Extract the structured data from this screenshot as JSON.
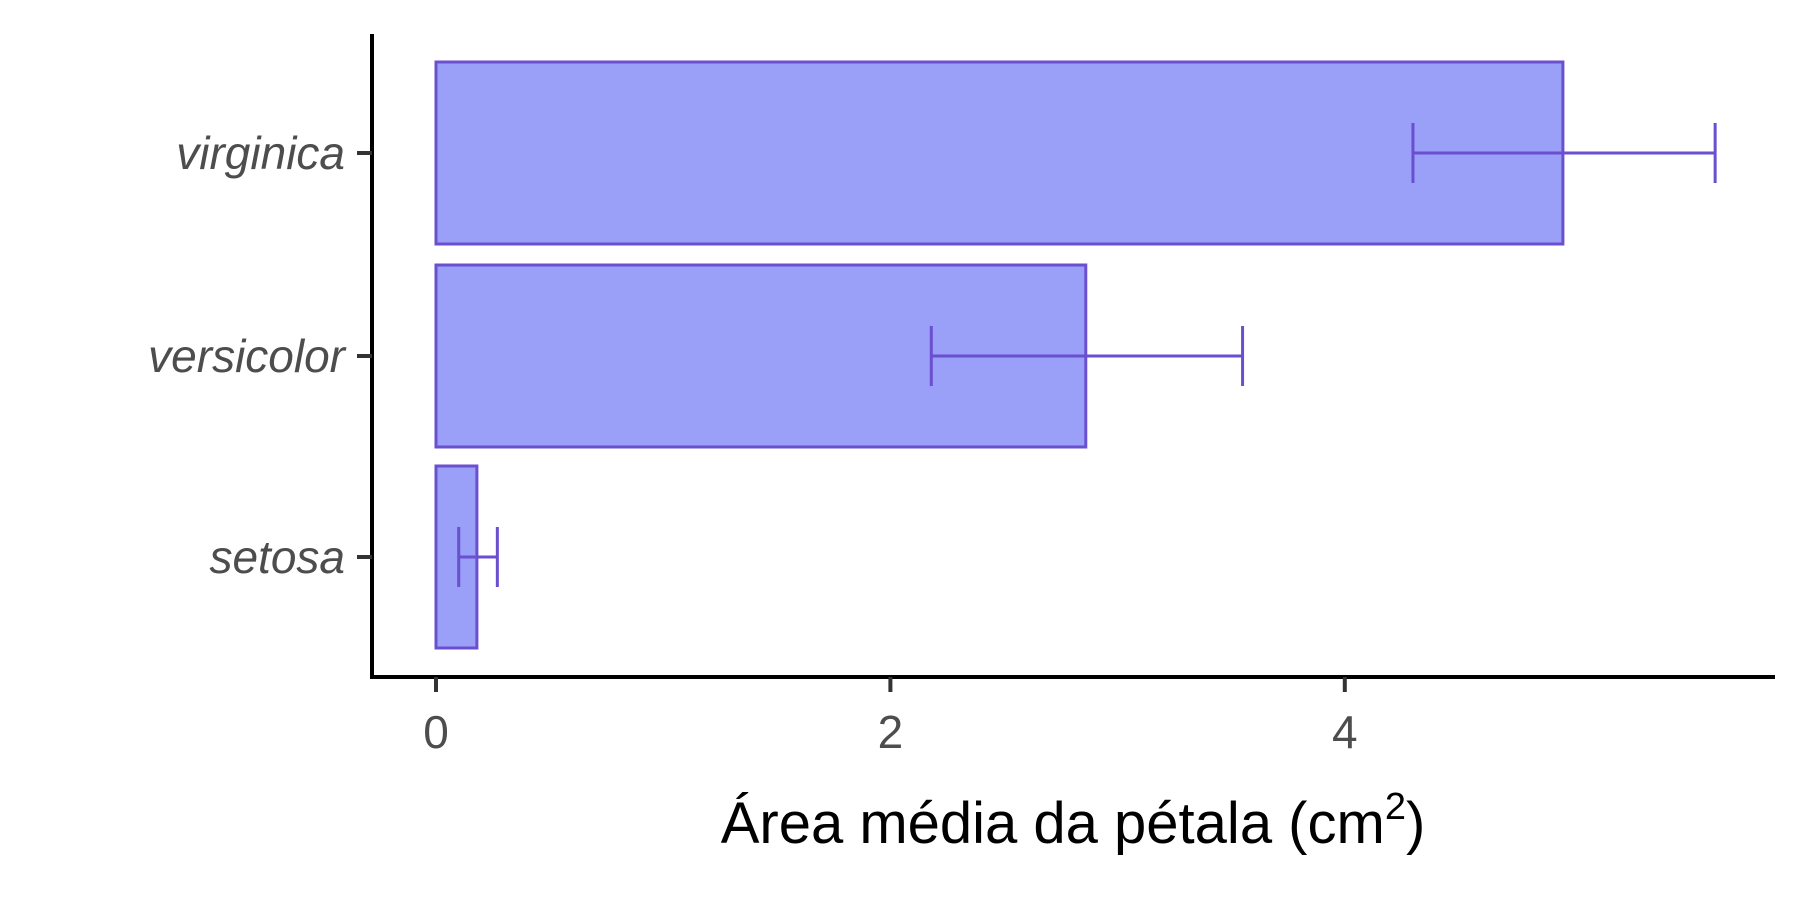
{
  "chart_data": {
    "type": "bar",
    "orientation": "horizontal",
    "categories": [
      "setosa",
      "versicolor",
      "virginica"
    ],
    "values": [
      0.18,
      2.86,
      4.96
    ],
    "error_low": [
      0.1,
      2.18,
      4.3
    ],
    "error_high": [
      0.27,
      3.55,
      5.63
    ],
    "xlabel_main": "Área média da pétala (cm",
    "xlabel_sup": "2",
    "xlabel_end": ")",
    "ylabel": "",
    "title": "",
    "xlim": [
      0,
      5.85
    ],
    "xticks": [
      "0",
      "2",
      "4"
    ],
    "xtick_values": [
      0,
      2,
      4
    ],
    "grid": false,
    "colors": {
      "bar_fill": "#9a9ff7",
      "bar_stroke": "#6a4fcf",
      "errorbar": "#6a4fcf",
      "axis": "#000000"
    }
  }
}
